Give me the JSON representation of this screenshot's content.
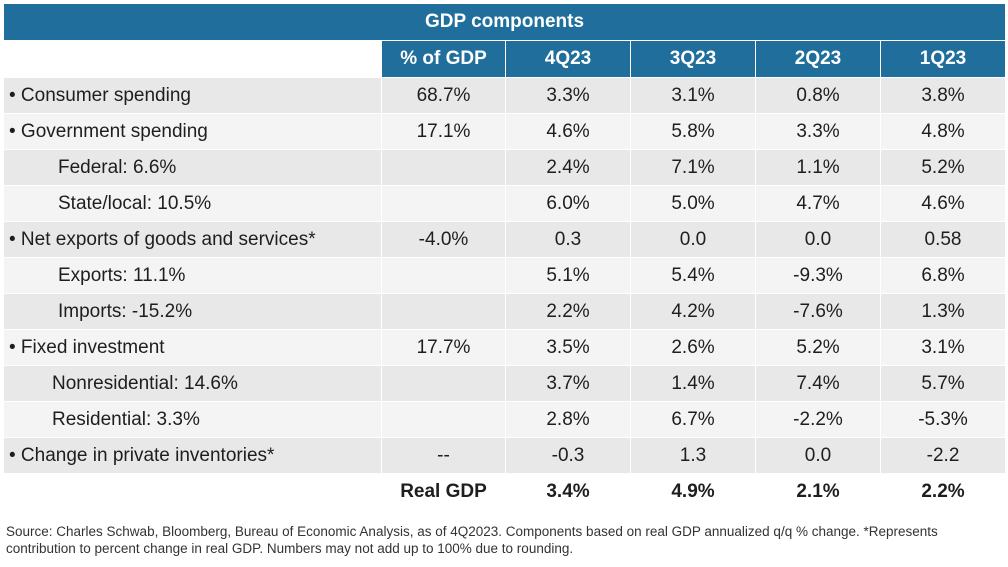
{
  "chart_data": {
    "type": "table",
    "title": "GDP components",
    "columns": [
      "",
      "% of GDP",
      "4Q23",
      "3Q23",
      "2Q23",
      "1Q23"
    ],
    "rows": [
      {
        "label": "• Consumer spending",
        "indent": 0,
        "values": [
          "68.7%",
          "3.3%",
          "3.1%",
          "0.8%",
          "3.8%"
        ]
      },
      {
        "label": "• Government spending",
        "indent": 0,
        "values": [
          "17.1%",
          "4.6%",
          "5.8%",
          "3.3%",
          "4.8%"
        ]
      },
      {
        "label": "Federal: 6.6%",
        "indent": 1,
        "values": [
          "",
          "2.4%",
          "7.1%",
          "1.1%",
          "5.2%"
        ]
      },
      {
        "label": "State/local: 10.5%",
        "indent": 1,
        "values": [
          "",
          "6.0%",
          "5.0%",
          "4.7%",
          "4.6%"
        ]
      },
      {
        "label": "• Net exports of goods and services*",
        "indent": 0,
        "values": [
          "-4.0%",
          "0.3",
          "0.0",
          "0.0",
          "0.58"
        ]
      },
      {
        "label": "Exports: 11.1%",
        "indent": 1,
        "values": [
          "",
          "5.1%",
          "5.4%",
          "-9.3%",
          "6.8%"
        ]
      },
      {
        "label": "Imports: -15.2%",
        "indent": 1,
        "values": [
          "",
          "2.2%",
          "4.2%",
          "-7.6%",
          "1.3%"
        ]
      },
      {
        "label": "• Fixed investment",
        "indent": 0,
        "values": [
          "17.7%",
          "3.5%",
          "2.6%",
          "5.2%",
          "3.1%"
        ]
      },
      {
        "label": "Nonresidential: 14.6%",
        "indent": 2,
        "values": [
          "",
          "3.7%",
          "1.4%",
          "7.4%",
          "5.7%"
        ]
      },
      {
        "label": "Residential: 3.3%",
        "indent": 2,
        "values": [
          "",
          "2.8%",
          "6.7%",
          "-2.2%",
          "-5.3%"
        ]
      },
      {
        "label": "• Change in private inventories*",
        "indent": 0,
        "values": [
          "--",
          "-0.3",
          "1.3",
          "0.0",
          "-2.2"
        ]
      }
    ],
    "total": {
      "label": "Real GDP",
      "values": [
        "3.4%",
        "4.9%",
        "2.1%",
        "2.2%"
      ]
    },
    "header_color": "#1f6e9b",
    "row_colors": [
      "#e8e8e8",
      "#f4f4f4"
    ]
  },
  "footnote": "Source: Charles Schwab, Bloomberg, Bureau of Economic Analysis, as of 4Q2023. Components based on real GDP annualized q/q % change. *Represents contribution to percent change in real GDP. Numbers may not add up to 100% due to rounding."
}
